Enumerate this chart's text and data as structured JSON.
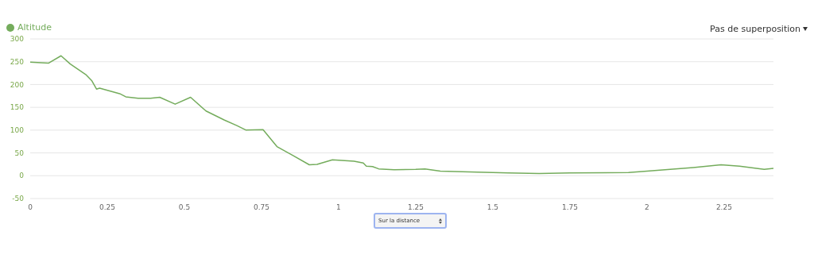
{
  "chart_data": {
    "type": "line",
    "x": [
      0,
      0.06,
      0.1,
      0.13,
      0.18,
      0.2,
      0.215,
      0.225,
      0.29,
      0.31,
      0.35,
      0.39,
      0.42,
      0.47,
      0.52,
      0.57,
      0.63,
      0.67,
      0.7,
      0.755,
      0.8,
      0.85,
      0.905,
      0.93,
      0.98,
      1.05,
      1.08,
      1.09,
      1.11,
      1.13,
      1.18,
      1.25,
      1.28,
      1.33,
      1.45,
      1.55,
      1.65,
      1.75,
      1.94,
      2.0,
      2.15,
      2.24,
      2.3,
      2.38,
      2.41
    ],
    "series": [
      {
        "name": "Altitude",
        "color": "#74ac5c",
        "values": [
          249,
          247,
          263,
          245,
          222,
          208,
          190,
          192,
          180,
          173,
          170,
          170,
          172,
          157,
          172,
          142,
          122,
          110,
          100,
          101,
          64,
          45,
          24,
          25,
          35,
          32,
          28,
          21,
          20,
          15,
          13,
          14,
          15,
          10,
          8,
          6,
          5,
          6,
          7,
          10,
          18,
          24,
          21,
          14,
          16
        ]
      }
    ],
    "xlim": [
      0,
      2.41
    ],
    "xticks": [
      0,
      0.25,
      0.5,
      0.75,
      1,
      1.25,
      1.5,
      1.75,
      2,
      2.25
    ],
    "ylim": [
      -50,
      300
    ],
    "yticks": [
      -50,
      0,
      50,
      100,
      150,
      200,
      250,
      300
    ],
    "grid": "y",
    "legend": "top left",
    "marker": "none",
    "line_style": "solid",
    "annotations": [
      "Pas de superposition",
      "Sur la distance"
    ]
  }
}
